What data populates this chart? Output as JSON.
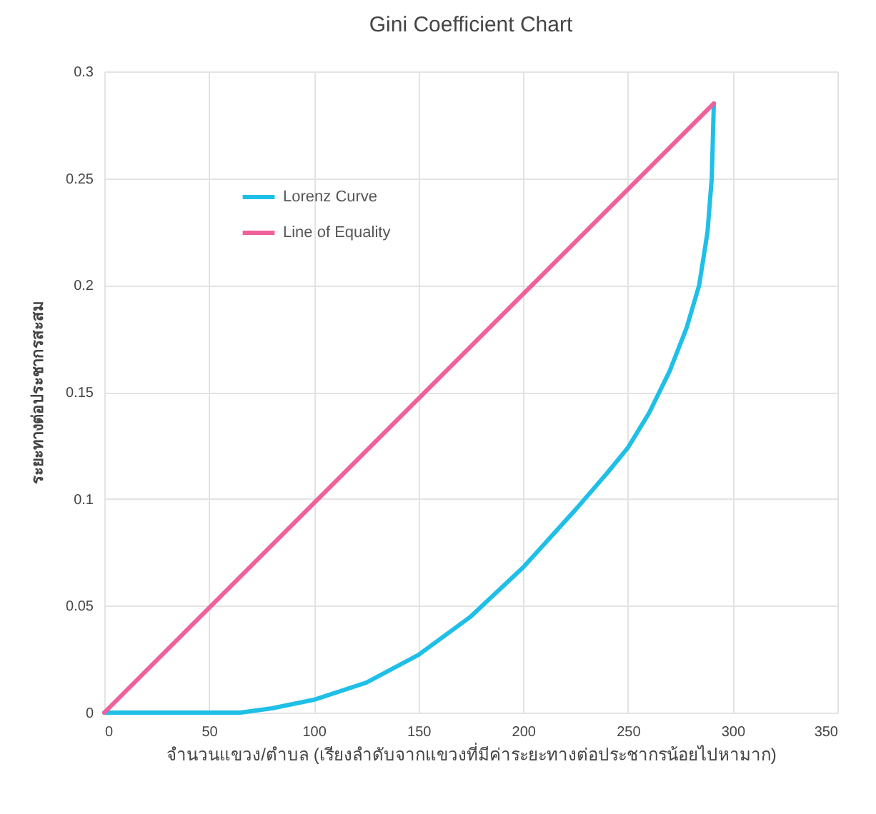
{
  "chart_data": {
    "type": "line",
    "title": "Gini Coefficient Chart",
    "xlabel": "จำนวนแขวง/ตำบล (เรียงลำดับจากแขวงที่มีค่าระยะทางต่อประชากรน้อยไปหามาก)",
    "ylabel": "ระยะทางต่อประชากรสะสม",
    "series": [
      {
        "name": "Lorenz Curve",
        "color": "#1fbfe8",
        "x": [
          0,
          30,
          65,
          80,
          100,
          125,
          150,
          175,
          200,
          225,
          240,
          250,
          260,
          270,
          278,
          284,
          288,
          290,
          291
        ],
        "values": [
          0,
          0,
          0,
          0.002,
          0.006,
          0.014,
          0.027,
          0.045,
          0.068,
          0.095,
          0.112,
          0.124,
          0.14,
          0.16,
          0.18,
          0.2,
          0.225,
          0.25,
          0.285
        ]
      },
      {
        "name": "Line of Equality",
        "color": "#f0609a",
        "x": [
          0,
          291
        ],
        "values": [
          0,
          0.285
        ]
      }
    ],
    "xlim": [
      0,
      350
    ],
    "xticks": [
      0,
      50,
      100,
      150,
      200,
      250,
      300,
      350
    ],
    "ylim": [
      0,
      0.3
    ],
    "yticks": [
      0,
      0.05,
      0.1,
      0.15,
      0.2,
      0.25,
      0.3
    ],
    "grid": true,
    "legend": "top left"
  }
}
